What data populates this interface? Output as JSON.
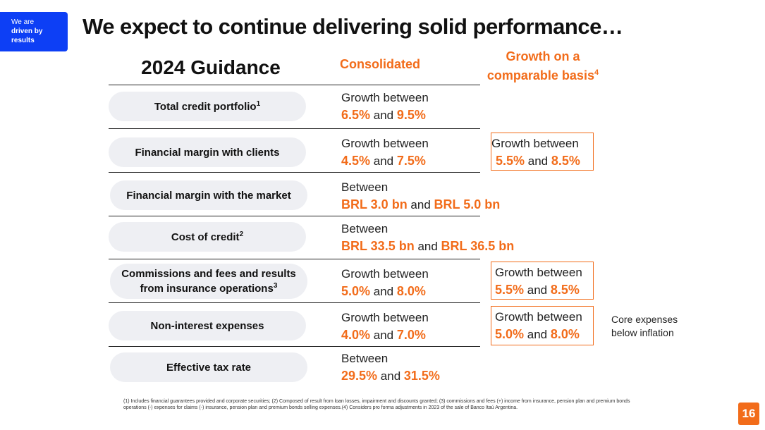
{
  "badge": {
    "line1": "We are",
    "line2": "driven by",
    "line3": "results"
  },
  "title": "We expect to continue delivering solid performance…",
  "headers": {
    "guidance": "2024 Guidance",
    "consolidated": "Consolidated",
    "growth_line1": "Growth on a",
    "growth_line2": "comparable basis",
    "growth_sup": "4"
  },
  "rows": [
    {
      "label": "Total credit portfolio",
      "sup": "1",
      "lead": "Growth between",
      "v1": "6.5%",
      "and": "and",
      "v2": "9.5%"
    },
    {
      "label": "Financial margin with clients",
      "sup": "",
      "lead": "Growth between",
      "v1": "4.5%",
      "and": "and",
      "v2": "7.5%",
      "comp": {
        "lead": "Growth between",
        "v1": "5.5%",
        "and": "and",
        "v2": "8.5%"
      }
    },
    {
      "label": "Financial margin with the market",
      "sup": "",
      "lead": "Between",
      "v1": "BRL 3.0 bn",
      "and": "and",
      "v2": "BRL 5.0 bn"
    },
    {
      "label": "Cost of credit",
      "sup": "2",
      "lead": "Between",
      "v1": "BRL 33.5 bn",
      "and": "and",
      "v2": "BRL 36.5 bn"
    },
    {
      "label_line1": "Commissions and fees and results",
      "label_line2": "from insurance operations",
      "sup": "3",
      "lead": "Growth between",
      "v1": "5.0%",
      "and": "and",
      "v2": "8.0%",
      "comp": {
        "lead": "Growth between",
        "v1": "5.5%",
        "and": "and",
        "v2": "8.5%"
      }
    },
    {
      "label": "Non-interest expenses",
      "sup": "",
      "lead": "Growth between",
      "v1": "4.0%",
      "and": "and",
      "v2": "7.0%",
      "comp": {
        "lead": "Growth between",
        "v1": "5.0%",
        "and": "and",
        "v2": "8.0%"
      },
      "note_line1": "Core expenses",
      "note_line2": "below inflation"
    },
    {
      "label": "Effective tax rate",
      "sup": "",
      "lead": "Between",
      "v1": "29.5%",
      "and": "and",
      "v2": "31.5%"
    }
  ],
  "footnote": "(1) Includes financial guarantees provided and corporate securities; (2) Composed of result from loan losses, impairment and discounts granted; (3) commissions and fees (+) income from insurance, pension plan and premium bonds operations (-) expenses for claims (-) insurance, pension plan and premium bonds selling expenses.(4) Considers pro forma adjustments in 2023 of the sale of Banco Itaú Argentina.",
  "page_number": "16",
  "colors": {
    "accent": "#f26c1a",
    "badge_blue": "#0d3ff5",
    "pill_bg": "#eeeff3"
  }
}
